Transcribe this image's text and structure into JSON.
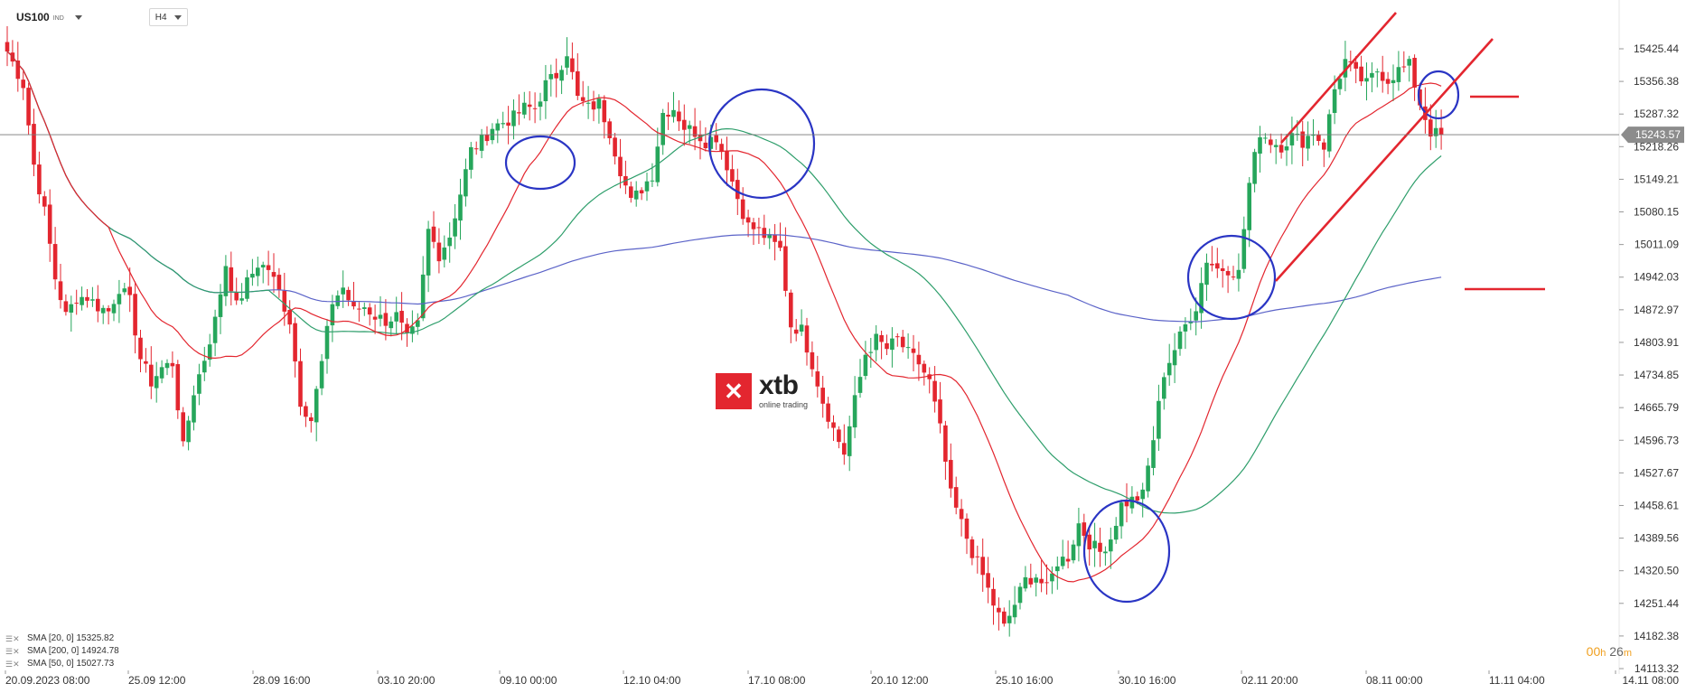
{
  "toolbar": {
    "symbol": "US100",
    "symbol_type": "IND",
    "timeframe": "H4"
  },
  "logo": {
    "mark": "✕",
    "name": "xtb",
    "tagline": "online trading"
  },
  "price_axis": {
    "ticks": [
      "15425.44",
      "15356.38",
      "15287.32",
      "15218.26",
      "15149.21",
      "15080.15",
      "15011.09",
      "14942.03",
      "14872.97",
      "14803.91",
      "14734.85",
      "14665.79",
      "14596.73",
      "14527.67",
      "14458.61",
      "14389.56",
      "14320.50",
      "14251.44",
      "14182.38",
      "14113.32"
    ],
    "current_price": "15243.57"
  },
  "time_axis": {
    "ticks": [
      "20.09.2023   08:00",
      "25.09  12:00",
      "28.09  16:00",
      "03.10  20:00",
      "09.10  00:00",
      "12.10  04:00",
      "17.10  08:00",
      "20.10  12:00",
      "25.10  16:00",
      "30.10  16:00",
      "02.11  20:00",
      "08.11  00:00",
      "11.11  04:00",
      "14.11  08:00"
    ]
  },
  "legend": [
    {
      "label": "SMA [20, 0]  15325.82"
    },
    {
      "label": "SMA [200, 0]  14924.78"
    },
    {
      "label": "SMA [50, 0]  15027.73"
    }
  ],
  "timer": {
    "hours": "00",
    "h": "h",
    "minutes": "26",
    "m": "m"
  },
  "colors": {
    "bull": "#26a65b",
    "bear": "#e3262f",
    "sma20": "#e3262f",
    "sma50": "#2e9e6b",
    "sma200": "#5b63c8",
    "annotation_circle": "#2a35c4",
    "annotation_line": "#e3262f"
  },
  "chart_data": {
    "type": "candlestick",
    "instrument": "US100",
    "timeframe": "H4",
    "ylim": [
      14113.32,
      15425.44
    ],
    "x_range": [
      "20.09.2023 08:00",
      "14.11 08:00"
    ],
    "grid": false,
    "current_price": 15243.57,
    "anchor_closes": [
      [
        0,
        15420
      ],
      [
        3,
        15350
      ],
      [
        5,
        15180
      ],
      [
        7,
        15080
      ],
      [
        9,
        14940
      ],
      [
        11,
        14860
      ],
      [
        13,
        14900
      ],
      [
        15,
        14900
      ],
      [
        17,
        14880
      ],
      [
        19,
        14870
      ],
      [
        21,
        14920
      ],
      [
        23,
        14890
      ],
      [
        25,
        14770
      ],
      [
        27,
        14720
      ],
      [
        29,
        14750
      ],
      [
        31,
        14760
      ],
      [
        33,
        14580
      ],
      [
        35,
        14700
      ],
      [
        37,
        14770
      ],
      [
        39,
        14850
      ],
      [
        41,
        14970
      ],
      [
        43,
        14880
      ],
      [
        45,
        14930
      ],
      [
        47,
        14970
      ],
      [
        49,
        14960
      ],
      [
        51,
        14910
      ],
      [
        53,
        14850
      ],
      [
        55,
        14680
      ],
      [
        57,
        14640
      ],
      [
        59,
        14760
      ],
      [
        61,
        14890
      ],
      [
        63,
        14920
      ],
      [
        65,
        14870
      ],
      [
        67,
        14880
      ],
      [
        69,
        14860
      ],
      [
        71,
        14850
      ],
      [
        73,
        14860
      ],
      [
        75,
        14810
      ],
      [
        77,
        14840
      ],
      [
        79,
        15040
      ],
      [
        81,
        14990
      ],
      [
        83,
        15030
      ],
      [
        85,
        15120
      ],
      [
        87,
        15210
      ],
      [
        89,
        15230
      ],
      [
        91,
        15260
      ],
      [
        93,
        15270
      ],
      [
        95,
        15280
      ],
      [
        97,
        15300
      ],
      [
        99,
        15300
      ],
      [
        101,
        15350
      ],
      [
        103,
        15370
      ],
      [
        105,
        15420
      ],
      [
        107,
        15320
      ],
      [
        109,
        15300
      ],
      [
        111,
        15310
      ],
      [
        113,
        15250
      ],
      [
        115,
        15170
      ],
      [
        117,
        15100
      ],
      [
        119,
        15130
      ],
      [
        121,
        15160
      ],
      [
        123,
        15290
      ],
      [
        125,
        15300
      ],
      [
        127,
        15260
      ],
      [
        129,
        15250
      ],
      [
        131,
        15230
      ],
      [
        133,
        15240
      ],
      [
        135,
        15180
      ],
      [
        137,
        15110
      ],
      [
        139,
        15050
      ],
      [
        141,
        15040
      ],
      [
        143,
        15020
      ],
      [
        145,
        15000
      ],
      [
        147,
        14840
      ],
      [
        149,
        14830
      ],
      [
        151,
        14760
      ],
      [
        153,
        14680
      ],
      [
        155,
        14620
      ],
      [
        157,
        14570
      ],
      [
        159,
        14680
      ],
      [
        161,
        14780
      ],
      [
        163,
        14810
      ],
      [
        165,
        14790
      ],
      [
        167,
        14810
      ],
      [
        169,
        14780
      ],
      [
        171,
        14760
      ],
      [
        173,
        14720
      ],
      [
        175,
        14620
      ],
      [
        177,
        14480
      ],
      [
        179,
        14420
      ],
      [
        181,
        14360
      ],
      [
        183,
        14310
      ],
      [
        185,
        14250
      ],
      [
        187,
        14200
      ],
      [
        189,
        14250
      ],
      [
        191,
        14300
      ],
      [
        193,
        14310
      ],
      [
        195,
        14280
      ],
      [
        197,
        14340
      ],
      [
        199,
        14350
      ],
      [
        201,
        14420
      ],
      [
        203,
        14380
      ],
      [
        205,
        14360
      ],
      [
        207,
        14390
      ],
      [
        209,
        14460
      ],
      [
        211,
        14470
      ],
      [
        213,
        14480
      ],
      [
        215,
        14600
      ],
      [
        217,
        14740
      ],
      [
        219,
        14790
      ],
      [
        221,
        14840
      ],
      [
        223,
        14880
      ],
      [
        225,
        14980
      ],
      [
        227,
        14960
      ],
      [
        229,
        14960
      ],
      [
        231,
        14950
      ],
      [
        233,
        15140
      ],
      [
        235,
        15250
      ],
      [
        237,
        15230
      ],
      [
        239,
        15220
      ],
      [
        241,
        15240
      ],
      [
        243,
        15230
      ],
      [
        245,
        15250
      ],
      [
        247,
        15220
      ],
      [
        249,
        15340
      ],
      [
        251,
        15400
      ],
      [
        253,
        15370
      ],
      [
        255,
        15350
      ],
      [
        257,
        15380
      ],
      [
        259,
        15360
      ],
      [
        261,
        15380
      ],
      [
        263,
        15390
      ],
      [
        265,
        15310
      ],
      [
        267,
        15250
      ],
      [
        269,
        15240
      ]
    ],
    "series": [
      {
        "name": "SMA [20, 0]",
        "last": 15325.82
      },
      {
        "name": "SMA [200, 0]",
        "last": 14924.78
      },
      {
        "name": "SMA [50, 0]",
        "last": 15027.73
      }
    ]
  }
}
